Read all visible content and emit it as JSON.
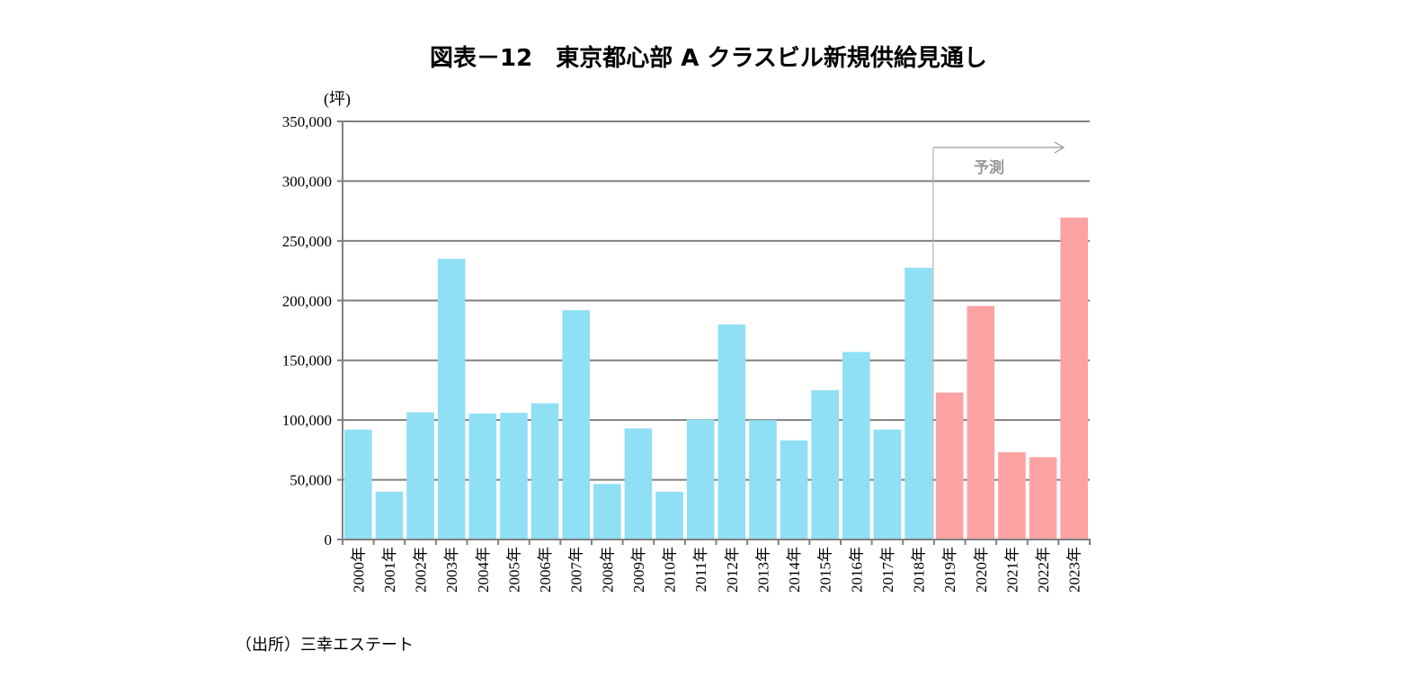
{
  "chart_data": {
    "type": "bar",
    "title": "図表－12　東京都心部 A クラスビル新規供給見通し",
    "ylabel": "(坪)",
    "ylim": [
      0,
      350000
    ],
    "yticks": [
      "0",
      "50,000",
      "100,000",
      "150,000",
      "200,000",
      "250,000",
      "300,000",
      "350,000"
    ],
    "grid": true,
    "categories": [
      "2000年",
      "2001年",
      "2002年",
      "2003年",
      "2004年",
      "2005年",
      "2006年",
      "2007年",
      "2008年",
      "2009年",
      "2010年",
      "2011年",
      "2012年",
      "2013年",
      "2014年",
      "2015年",
      "2016年",
      "2017年",
      "2018年",
      "2019年",
      "2020年",
      "2021年",
      "2022年",
      "2023年"
    ],
    "values": [
      92000,
      40000,
      106500,
      235000,
      105500,
      106000,
      114000,
      192000,
      46500,
      93000,
      40000,
      100500,
      180000,
      100000,
      83000,
      125000,
      157000,
      92000,
      227500,
      123000,
      195500,
      73000,
      69000,
      269500
    ],
    "forecast_from": "2019年",
    "forecast_label": "予測",
    "colors": {
      "actual": "#8FDFF5",
      "forecast": "#FBA3A3"
    },
    "source": "（出所）三幸エステート"
  }
}
